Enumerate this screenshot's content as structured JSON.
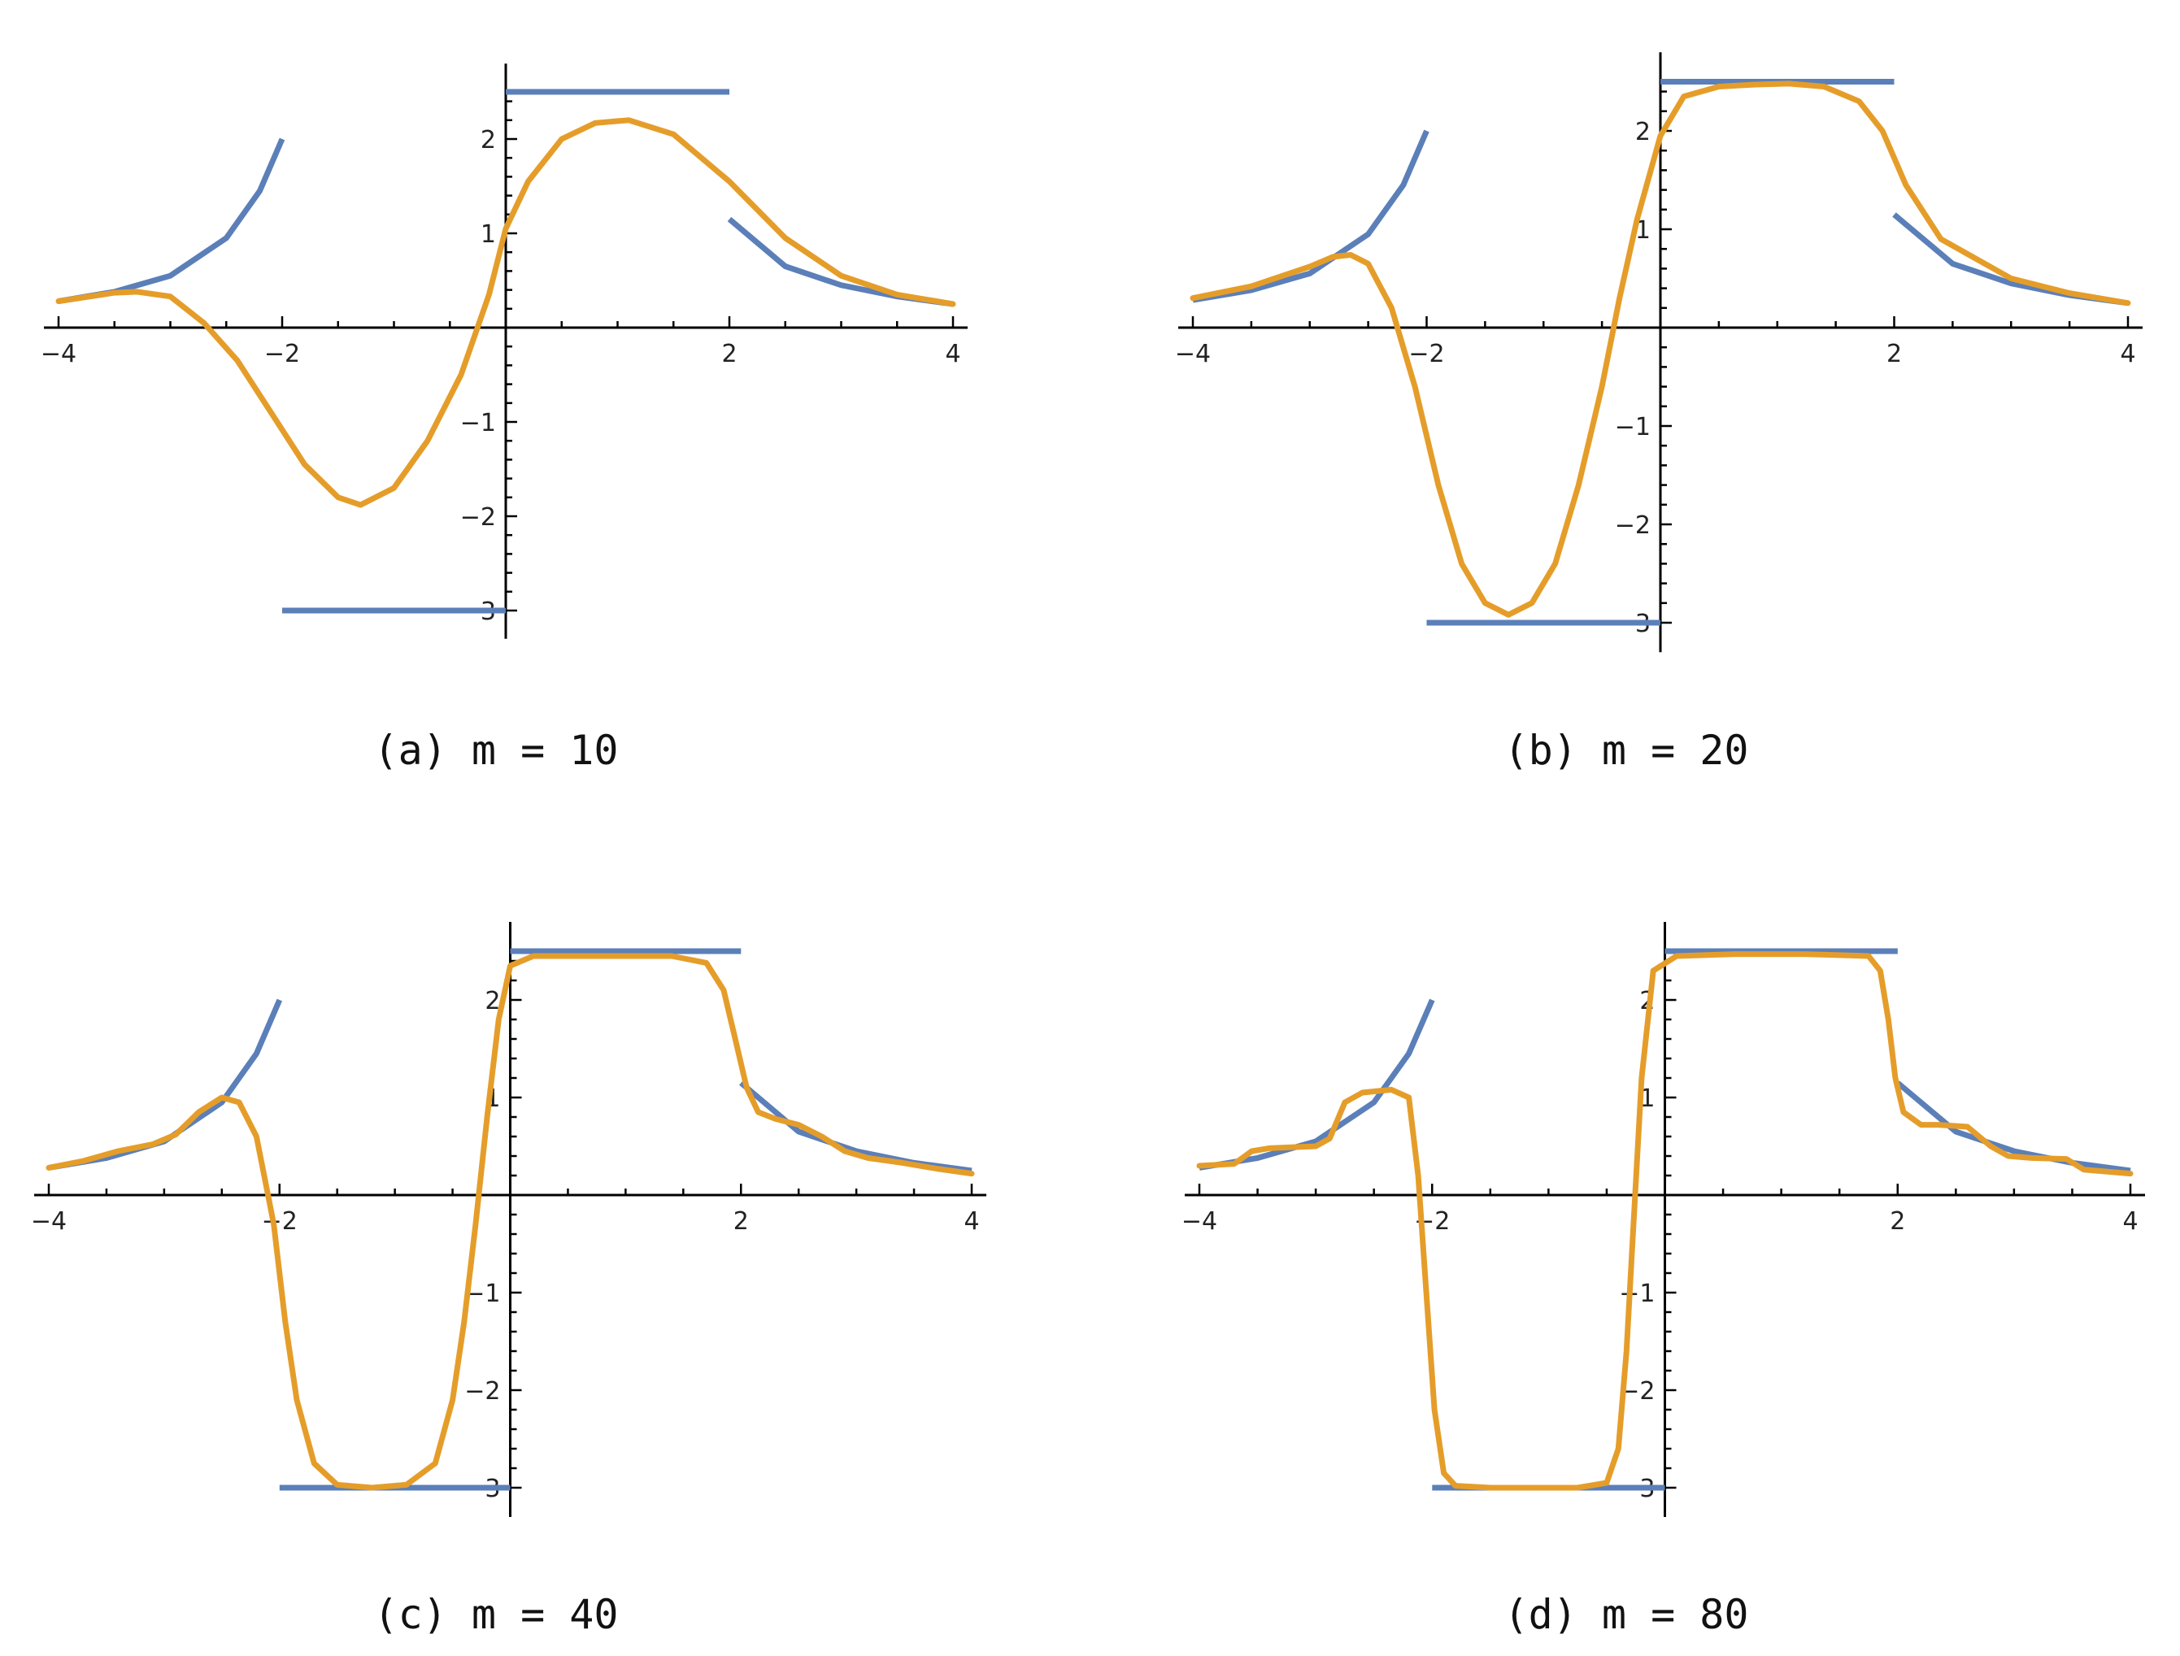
{
  "colors": {
    "reference": "#5b7fb8",
    "approximation": "#e59d2a"
  },
  "chart_data": [
    {
      "type": "line",
      "caption": "(a) m = 10",
      "xlim": [
        -4,
        4
      ],
      "ylim": [
        -3.3,
        2.8
      ],
      "xticks": [
        -4,
        -2,
        2,
        4
      ],
      "yticks": [
        -3,
        -2,
        -1,
        1,
        2
      ],
      "series": [
        {
          "role": "reference",
          "segments": [
            {
              "x": [
                -4,
                -3.5,
                -3,
                -2.5,
                -2.2,
                -2
              ],
              "y": [
                0.28,
                0.38,
                0.55,
                0.95,
                1.45,
                2.0
              ]
            },
            {
              "x": [
                -2,
                0
              ],
              "y": [
                -3,
                -3
              ]
            },
            {
              "x": [
                0,
                2
              ],
              "y": [
                2.5,
                2.5
              ]
            },
            {
              "x": [
                2,
                2.5,
                3,
                3.5,
                4
              ],
              "y": [
                1.15,
                0.65,
                0.45,
                0.33,
                0.25
              ]
            }
          ]
        },
        {
          "role": "approximation",
          "segments": [
            {
              "x": [
                -4,
                -3.5,
                -3.3,
                -3,
                -2.7,
                -2.4,
                -2.1,
                -1.8,
                -1.5,
                -1.3,
                -1.0,
                -0.7,
                -0.4,
                -0.15,
                0,
                0.2,
                0.5,
                0.8,
                1.1,
                1.5,
                2.0,
                2.5,
                3.0,
                3.5,
                4
              ],
              "y": [
                0.28,
                0.37,
                0.38,
                0.33,
                0.05,
                -0.35,
                -0.9,
                -1.45,
                -1.8,
                -1.88,
                -1.7,
                -1.2,
                -0.5,
                0.35,
                1.05,
                1.55,
                2.0,
                2.17,
                2.2,
                2.05,
                1.55,
                0.95,
                0.55,
                0.35,
                0.25
              ]
            }
          ]
        }
      ]
    },
    {
      "type": "line",
      "caption": "(b) m = 20",
      "xlim": [
        -4,
        4
      ],
      "ylim": [
        -3.3,
        2.8
      ],
      "xticks": [
        -4,
        -2,
        2,
        4
      ],
      "yticks": [
        -3,
        -2,
        -1,
        1,
        2
      ],
      "series": [
        {
          "role": "reference",
          "segments": [
            {
              "x": [
                -4,
                -3.5,
                -3,
                -2.5,
                -2.2,
                -2
              ],
              "y": [
                0.28,
                0.38,
                0.55,
                0.95,
                1.45,
                2.0
              ]
            },
            {
              "x": [
                -2,
                0
              ],
              "y": [
                -3,
                -3
              ]
            },
            {
              "x": [
                0,
                2
              ],
              "y": [
                2.5,
                2.5
              ]
            },
            {
              "x": [
                2,
                2.5,
                3,
                3.5,
                4
              ],
              "y": [
                1.15,
                0.65,
                0.45,
                0.33,
                0.25
              ]
            }
          ]
        },
        {
          "role": "approximation",
          "segments": [
            {
              "x": [
                -4,
                -3.5,
                -3,
                -2.8,
                -2.65,
                -2.5,
                -2.3,
                -2.1,
                -1.9,
                -1.7,
                -1.5,
                -1.3,
                -1.1,
                -0.9,
                -0.7,
                -0.5,
                -0.35,
                -0.2,
                0,
                0.2,
                0.5,
                0.8,
                1.1,
                1.4,
                1.7,
                1.9,
                2.1,
                2.4,
                3.0,
                3.5,
                4
              ],
              "y": [
                0.3,
                0.42,
                0.62,
                0.72,
                0.74,
                0.65,
                0.2,
                -0.6,
                -1.6,
                -2.4,
                -2.8,
                -2.92,
                -2.8,
                -2.4,
                -1.6,
                -0.6,
                0.3,
                1.1,
                1.95,
                2.35,
                2.45,
                2.47,
                2.48,
                2.45,
                2.3,
                2.0,
                1.45,
                0.9,
                0.5,
                0.35,
                0.25
              ]
            }
          ]
        }
      ]
    },
    {
      "type": "line",
      "caption": "(c) m = 40",
      "xlim": [
        -4,
        4
      ],
      "ylim": [
        -3.3,
        2.8
      ],
      "xticks": [
        -4,
        -2,
        2,
        4
      ],
      "yticks": [
        -3,
        -2,
        -1,
        1,
        2
      ],
      "series": [
        {
          "role": "reference",
          "segments": [
            {
              "x": [
                -4,
                -3.5,
                -3,
                -2.5,
                -2.2,
                -2
              ],
              "y": [
                0.28,
                0.38,
                0.55,
                0.95,
                1.45,
                2.0
              ]
            },
            {
              "x": [
                -2,
                0
              ],
              "y": [
                -3,
                -3
              ]
            },
            {
              "x": [
                0,
                2
              ],
              "y": [
                2.5,
                2.5
              ]
            },
            {
              "x": [
                2,
                2.5,
                3,
                3.5,
                4
              ],
              "y": [
                1.15,
                0.65,
                0.45,
                0.33,
                0.25
              ]
            }
          ]
        },
        {
          "role": "approximation",
          "segments": [
            {
              "x": [
                -4,
                -3.7,
                -3.4,
                -3.1,
                -2.9,
                -2.7,
                -2.5,
                -2.35,
                -2.2,
                -2.05,
                -1.95,
                -1.85,
                -1.7,
                -1.5,
                -1.2,
                -0.9,
                -0.65,
                -0.5,
                -0.4,
                -0.3,
                -0.2,
                -0.1,
                0,
                0.2,
                0.6,
                1.0,
                1.4,
                1.7,
                1.85,
                1.95,
                2.05,
                2.15,
                2.3,
                2.5,
                2.7,
                2.9,
                3.1,
                3.4,
                3.7,
                4
              ],
              "y": [
                0.28,
                0.35,
                0.45,
                0.52,
                0.62,
                0.85,
                1.0,
                0.95,
                0.6,
                -0.3,
                -1.3,
                -2.1,
                -2.75,
                -2.97,
                -3.0,
                -2.97,
                -2.75,
                -2.1,
                -1.3,
                -0.3,
                0.8,
                1.8,
                2.35,
                2.45,
                2.45,
                2.45,
                2.45,
                2.38,
                2.1,
                1.6,
                1.1,
                0.85,
                0.78,
                0.72,
                0.6,
                0.45,
                0.38,
                0.33,
                0.27,
                0.22
              ]
            }
          ]
        }
      ]
    },
    {
      "type": "line",
      "caption": "(d) m = 80",
      "xlim": [
        -4,
        4
      ],
      "ylim": [
        -3.3,
        2.8
      ],
      "xticks": [
        -4,
        -2,
        2,
        4
      ],
      "yticks": [
        -3,
        -2,
        -1,
        1,
        2
      ],
      "series": [
        {
          "role": "reference",
          "segments": [
            {
              "x": [
                -4,
                -3.5,
                -3,
                -2.5,
                -2.2,
                -2
              ],
              "y": [
                0.28,
                0.38,
                0.55,
                0.95,
                1.45,
                2.0
              ]
            },
            {
              "x": [
                -2,
                0
              ],
              "y": [
                -3,
                -3
              ]
            },
            {
              "x": [
                0,
                2
              ],
              "y": [
                2.5,
                2.5
              ]
            },
            {
              "x": [
                2,
                2.5,
                3,
                3.5,
                4
              ],
              "y": [
                1.15,
                0.65,
                0.45,
                0.33,
                0.25
              ]
            }
          ]
        },
        {
          "role": "approximation",
          "segments": [
            {
              "x": [
                -4,
                -3.7,
                -3.55,
                -3.4,
                -3.0,
                -2.88,
                -2.75,
                -2.6,
                -2.35,
                -2.2,
                -2.12,
                -2.05,
                -1.98,
                -1.9,
                -1.8,
                -1.5,
                -0.75,
                -0.5,
                -0.4,
                -0.33,
                -0.27,
                -0.2,
                -0.1,
                0.1,
                0.6,
                1.2,
                1.75,
                1.85,
                1.92,
                1.98,
                2.05,
                2.2,
                2.35,
                2.6,
                2.8,
                2.95,
                3.15,
                3.45,
                3.6,
                4
              ],
              "y": [
                0.3,
                0.32,
                0.45,
                0.48,
                0.5,
                0.58,
                0.95,
                1.05,
                1.08,
                1.0,
                0.2,
                -1.0,
                -2.2,
                -2.85,
                -2.98,
                -3.0,
                -3.0,
                -2.95,
                -2.6,
                -1.6,
                -0.3,
                1.2,
                2.3,
                2.45,
                2.47,
                2.47,
                2.45,
                2.3,
                1.8,
                1.2,
                0.85,
                0.72,
                0.72,
                0.7,
                0.5,
                0.4,
                0.38,
                0.37,
                0.26,
                0.22
              ]
            }
          ]
        }
      ]
    }
  ]
}
